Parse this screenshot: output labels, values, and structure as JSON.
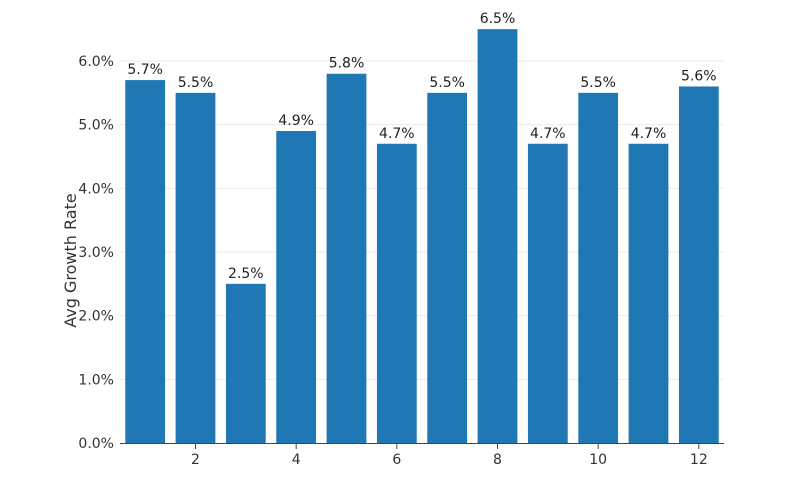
{
  "chart_data": {
    "type": "bar",
    "categories": [
      1,
      2,
      3,
      4,
      5,
      6,
      7,
      8,
      9,
      10,
      11,
      12
    ],
    "values": [
      5.7,
      5.5,
      2.5,
      4.9,
      5.8,
      4.7,
      5.5,
      6.5,
      4.7,
      5.5,
      4.7,
      5.6
    ],
    "data_labels": [
      "5.7%",
      "5.5%",
      "2.5%",
      "4.9%",
      "5.8%",
      "4.7%",
      "5.5%",
      "6.5%",
      "4.7%",
      "5.5%",
      "4.7%",
      "5.6%"
    ],
    "title": "",
    "xlabel": "",
    "ylabel": "Avg Growth Rate",
    "ylim": [
      0,
      6.0
    ],
    "y_ticks": [
      {
        "value": 0,
        "label": "0.0%"
      },
      {
        "value": 1,
        "label": "1.0%"
      },
      {
        "value": 2,
        "label": "2.0%"
      },
      {
        "value": 3,
        "label": "3.0%"
      },
      {
        "value": 4,
        "label": "4.0%"
      },
      {
        "value": 5,
        "label": "5.0%"
      },
      {
        "value": 6,
        "label": "6.0%"
      }
    ],
    "x_ticks": [
      {
        "value": 2,
        "label": "2"
      },
      {
        "value": 4,
        "label": "4"
      },
      {
        "value": 6,
        "label": "6"
      },
      {
        "value": 8,
        "label": "8"
      },
      {
        "value": 10,
        "label": "10"
      },
      {
        "value": 12,
        "label": "12"
      }
    ],
    "grid": true,
    "legend": "none",
    "colors": {
      "bar": "#1f77b4",
      "text": "#222222",
      "tick_text": "#333333",
      "grid": "#ebebeb",
      "axis": "#444444"
    }
  }
}
